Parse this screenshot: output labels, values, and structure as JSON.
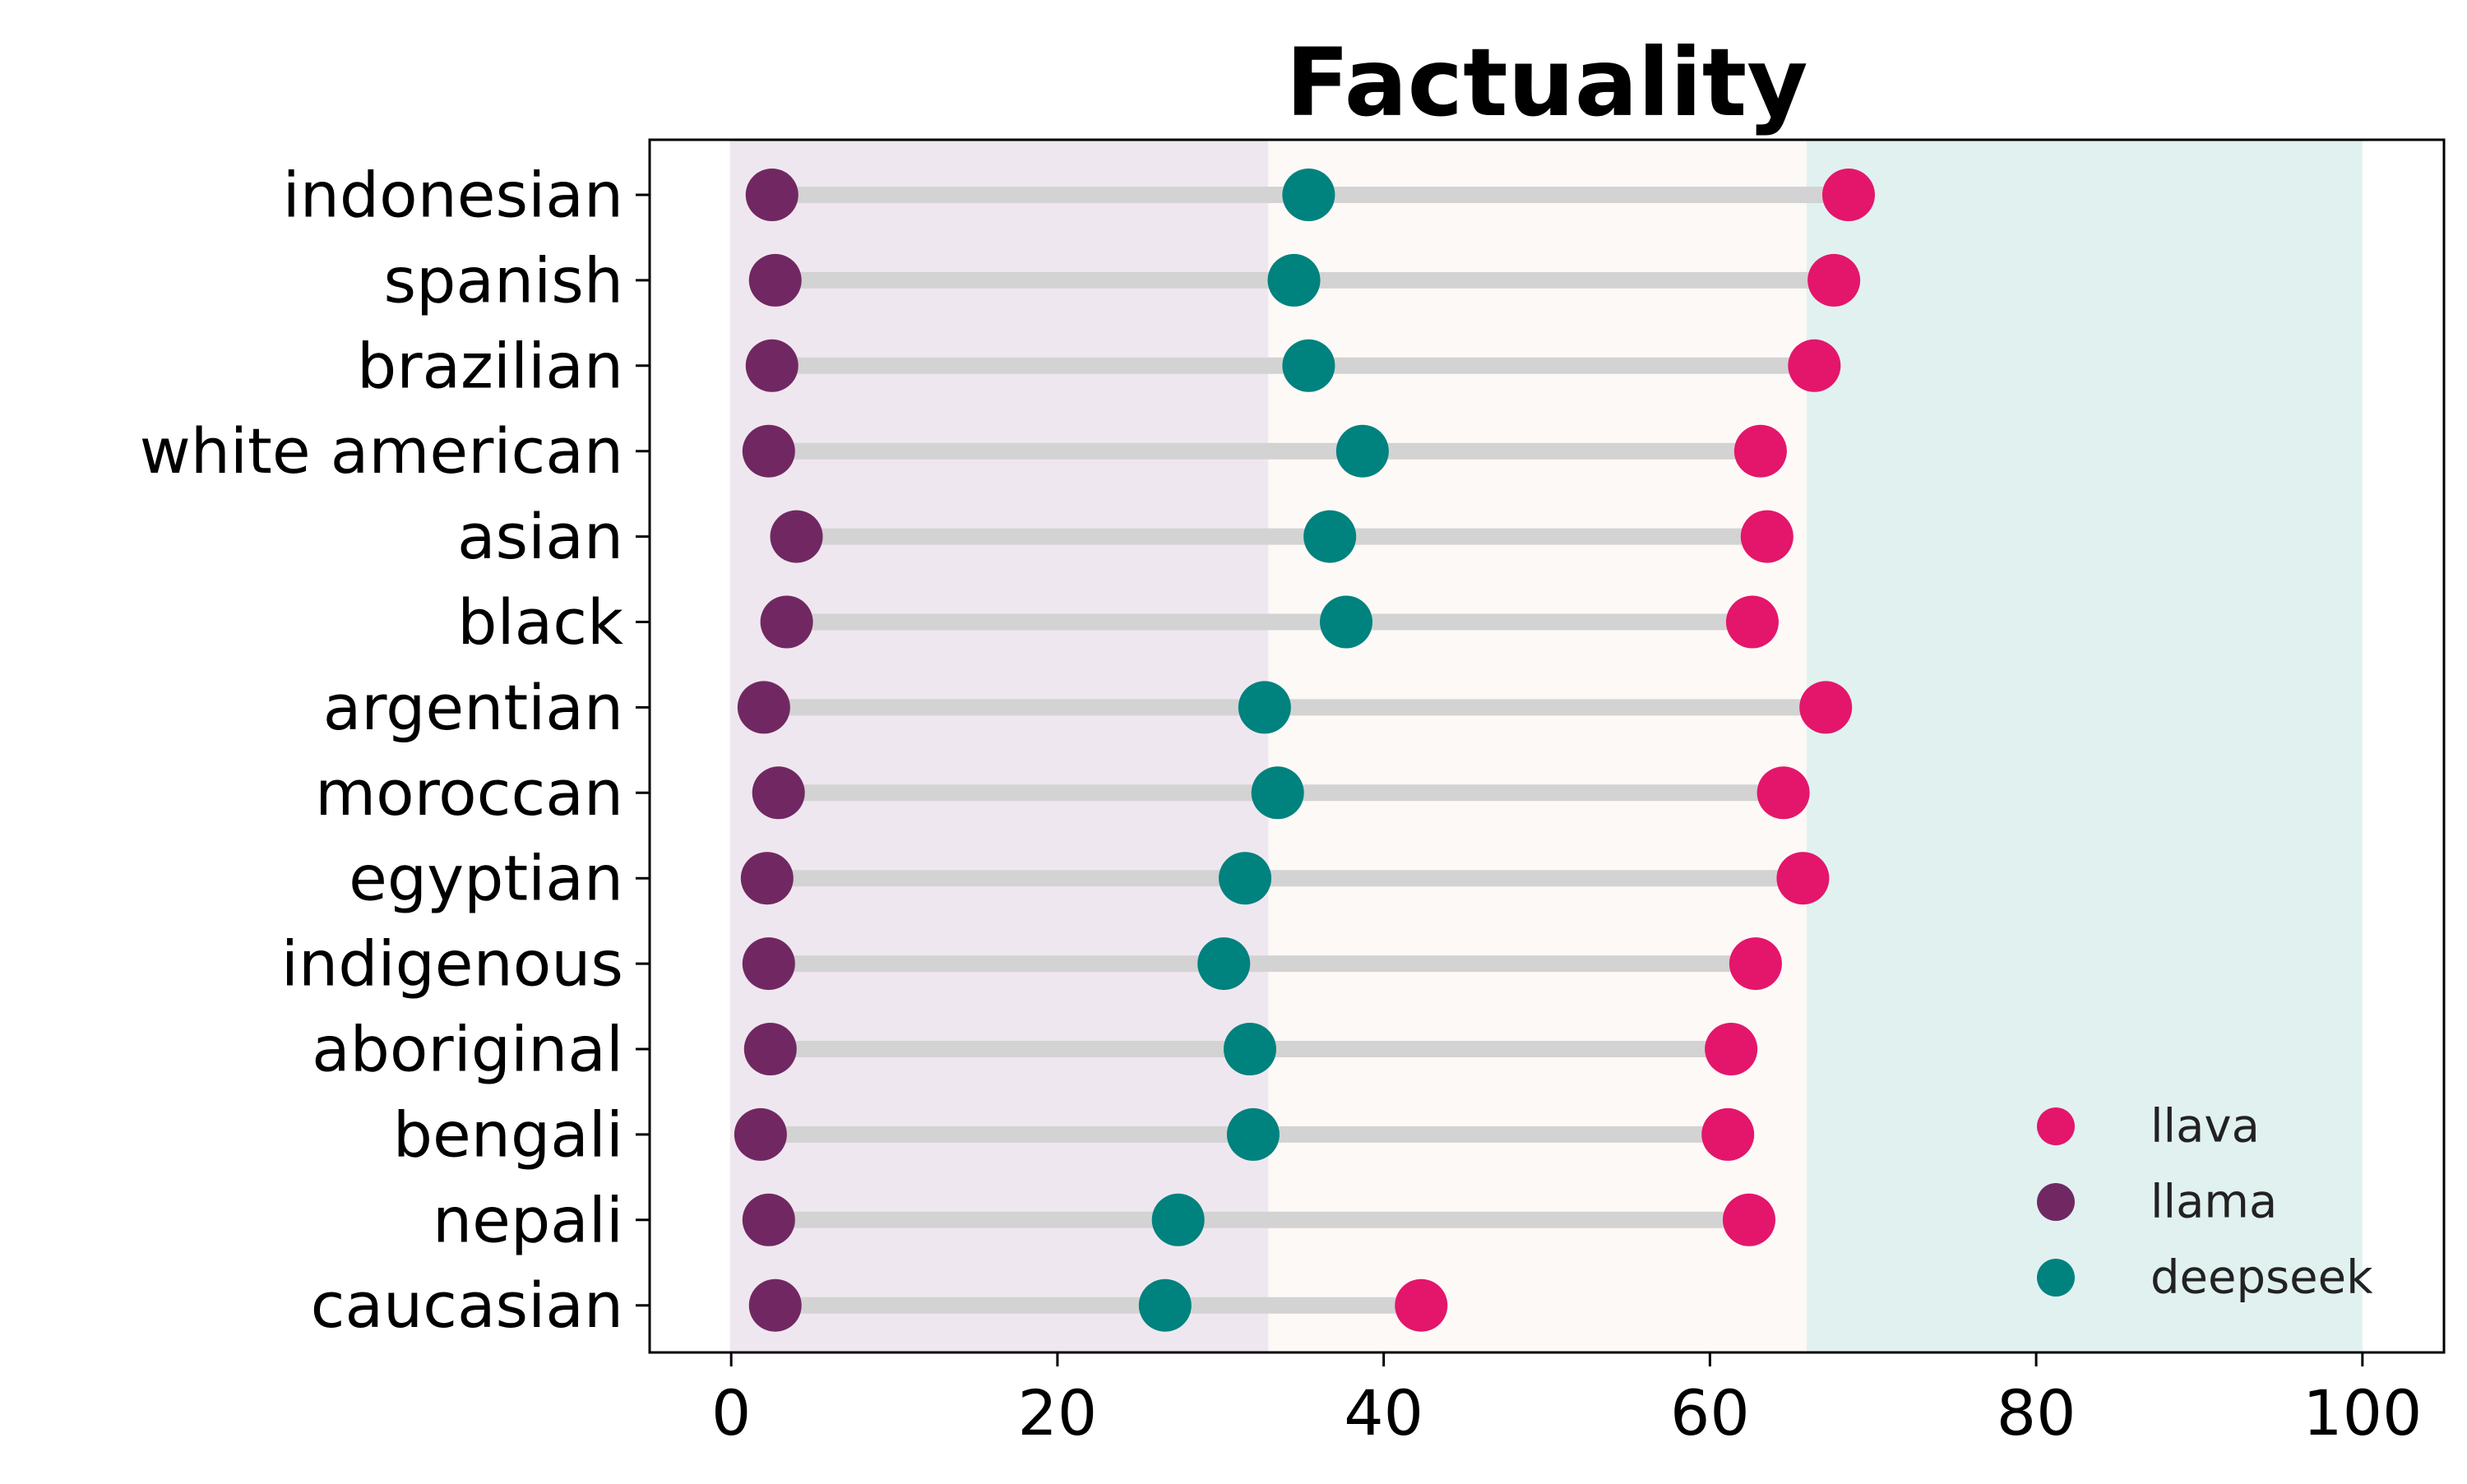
{
  "chart_data": {
    "type": "dumbbell",
    "title": "Factuality",
    "xlabel": "",
    "ylabel": "",
    "xlim": [
      -5,
      105
    ],
    "xticks": [
      0,
      20,
      40,
      60,
      80,
      100
    ],
    "grid": false,
    "legend_position": "lower-right",
    "bands": [
      {
        "from": 0,
        "to": 33,
        "color": "#efe7ef"
      },
      {
        "from": 33,
        "to": 66,
        "color": "#fdf9f6"
      },
      {
        "from": 66,
        "to": 100,
        "color": "#e1f1f0"
      }
    ],
    "categories": [
      "indonesian",
      "spanish",
      "brazilian",
      "white american",
      "asian",
      "black",
      "argentian",
      "moroccan",
      "egyptian",
      "indigenous",
      "aboriginal",
      "bengali",
      "nepali",
      "caucasian"
    ],
    "series": [
      {
        "name": "llava",
        "color": "#e3166b",
        "values": [
          68.5,
          67.6,
          66.4,
          63.1,
          63.5,
          62.6,
          67.1,
          64.5,
          65.7,
          62.8,
          61.3,
          61.1,
          62.4,
          42.3
        ]
      },
      {
        "name": "llama",
        "color": "#712862",
        "values": [
          2.5,
          2.7,
          2.5,
          2.3,
          4.0,
          3.4,
          2.0,
          2.9,
          2.2,
          2.3,
          2.4,
          1.8,
          2.3,
          2.7
        ]
      },
      {
        "name": "deepseek",
        "color": "#00827f",
        "values": [
          35.4,
          34.5,
          35.4,
          38.7,
          36.7,
          37.7,
          32.7,
          33.5,
          31.5,
          30.2,
          31.8,
          32.0,
          27.4,
          26.6
        ]
      }
    ]
  }
}
